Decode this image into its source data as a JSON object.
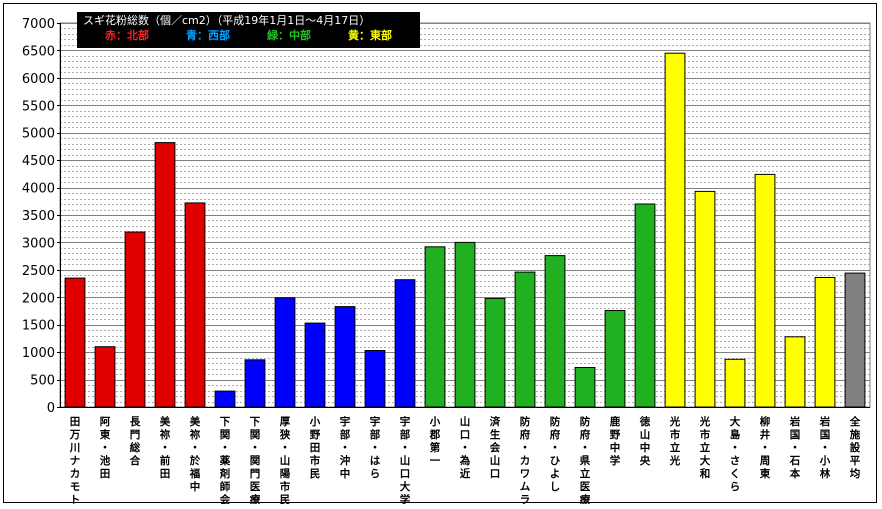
{
  "chart_data": {
    "type": "bar",
    "title": "スギ花粉総数（個／cm2）（平成19年1月1日〜4月17日）",
    "legend": [
      {
        "text": "赤：北部",
        "color": "#e00000"
      },
      {
        "text": "青：西部",
        "color": "#00a0ff"
      },
      {
        "text": "緑：中部",
        "color": "#20c020"
      },
      {
        "text": "黄：東部",
        "color": "#ffff00"
      }
    ],
    "ylim": [
      0,
      7000
    ],
    "yticks": [
      "0",
      "500",
      "1000",
      "1500",
      "2000",
      "2500",
      "3000",
      "3500",
      "4000",
      "4500",
      "5000",
      "5500",
      "6000",
      "6500",
      "7000"
    ],
    "grid": true,
    "categories": [
      "田万川ナカモト",
      "阿東・池田",
      "長門総合",
      "美祢・前田",
      "美祢・於福中",
      "下関・薬剤師会",
      "下関・関門医療",
      "厚狭・山陽市民",
      "小野田市民",
      "宇部・沖中",
      "宇部・はら",
      "宇部・山口大学",
      "小郡第一",
      "山口・為近",
      "済生会山口",
      "防府・カワムラ",
      "防府・ひよし",
      "防府・県立医療",
      "鹿野中学",
      "徳山中央",
      "光市立光",
      "光市立大和",
      "大島・さくら",
      "柳井・周東",
      "岩国・石本",
      "岩国・小林",
      "全施設平均"
    ],
    "values": [
      2350,
      1100,
      3190,
      4820,
      3720,
      290,
      860,
      1990,
      1530,
      1830,
      1030,
      2320,
      2920,
      3000,
      1980,
      2460,
      2760,
      720,
      1760,
      3700,
      6450,
      3930,
      870,
      4240,
      1280,
      2360,
      2440
    ],
    "colors": [
      "#e00000",
      "#e00000",
      "#e00000",
      "#e00000",
      "#e00000",
      "#0000ff",
      "#0000ff",
      "#0000ff",
      "#0000ff",
      "#0000ff",
      "#0000ff",
      "#0000ff",
      "#20b020",
      "#20b020",
      "#20b020",
      "#20b020",
      "#20b020",
      "#20b020",
      "#20b020",
      "#20b020",
      "#ffff00",
      "#ffff00",
      "#ffff00",
      "#ffff00",
      "#ffff00",
      "#ffff00",
      "#808080"
    ]
  }
}
